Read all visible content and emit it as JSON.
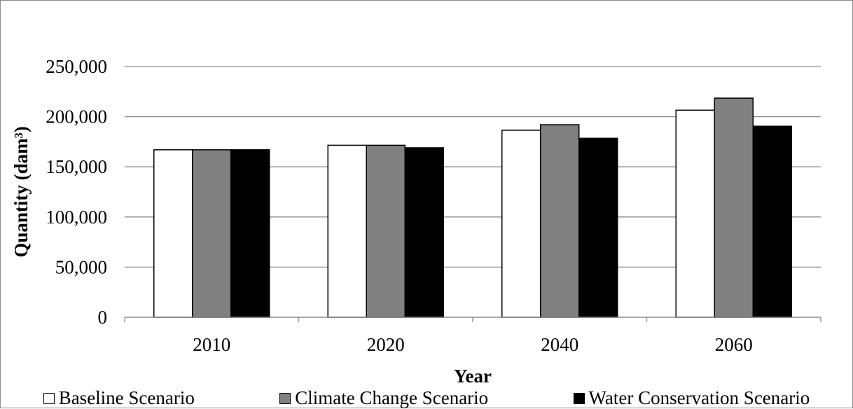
{
  "chart_data": {
    "type": "bar",
    "categories": [
      "2010",
      "2020",
      "2040",
      "2060"
    ],
    "series": [
      {
        "name": "Baseline Scenario",
        "values": [
          167000,
          171500,
          186500,
          206500
        ],
        "color": "#ffffff"
      },
      {
        "name": "Climate Change Scenario",
        "values": [
          167000,
          171500,
          192000,
          218500
        ],
        "color": "#808080"
      },
      {
        "name": "Water Conservation Scenario",
        "values": [
          167000,
          169000,
          178500,
          190500
        ],
        "color": "#000000"
      }
    ],
    "xlabel": "Year",
    "ylabel": "Quantity (dam³)",
    "ylim": [
      0,
      250000
    ],
    "yticks": [
      0,
      50000,
      100000,
      150000,
      200000,
      250000
    ],
    "ytick_labels": [
      "0",
      "50,000",
      "100,000",
      "150,000",
      "200,000",
      "250,000"
    ],
    "grid": "horizontal",
    "legend_position": "bottom"
  }
}
